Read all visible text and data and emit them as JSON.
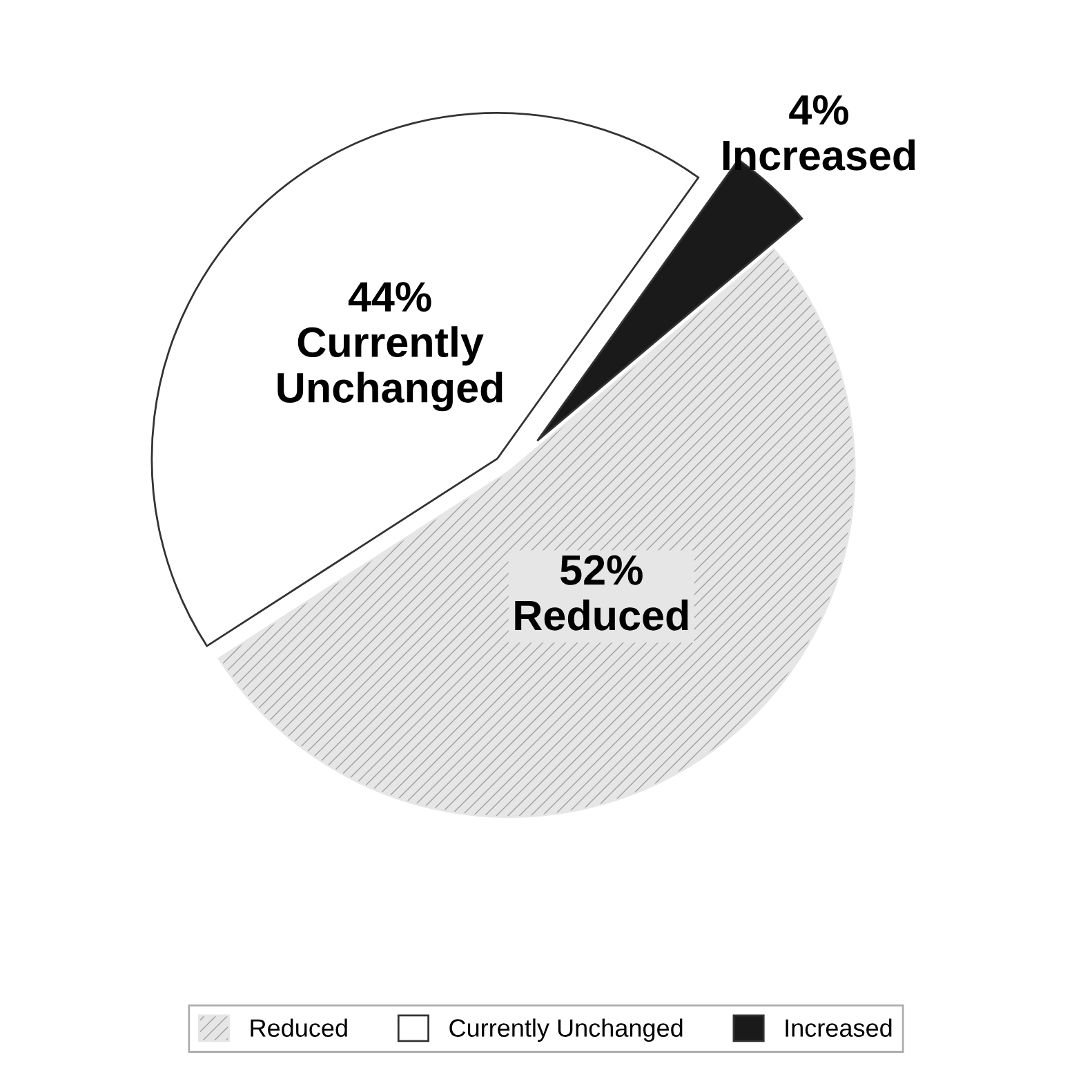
{
  "chart_data": {
    "type": "pie",
    "categories": [
      "Reduced",
      "Currently Unchanged",
      "Increased"
    ],
    "values": [
      52,
      44,
      4
    ],
    "value_labels": [
      "52%",
      "44%",
      "4%"
    ],
    "colors": [
      "#e6e6e6",
      "#ffffff",
      "#1a1a1a"
    ],
    "legend": "bottom"
  }
}
